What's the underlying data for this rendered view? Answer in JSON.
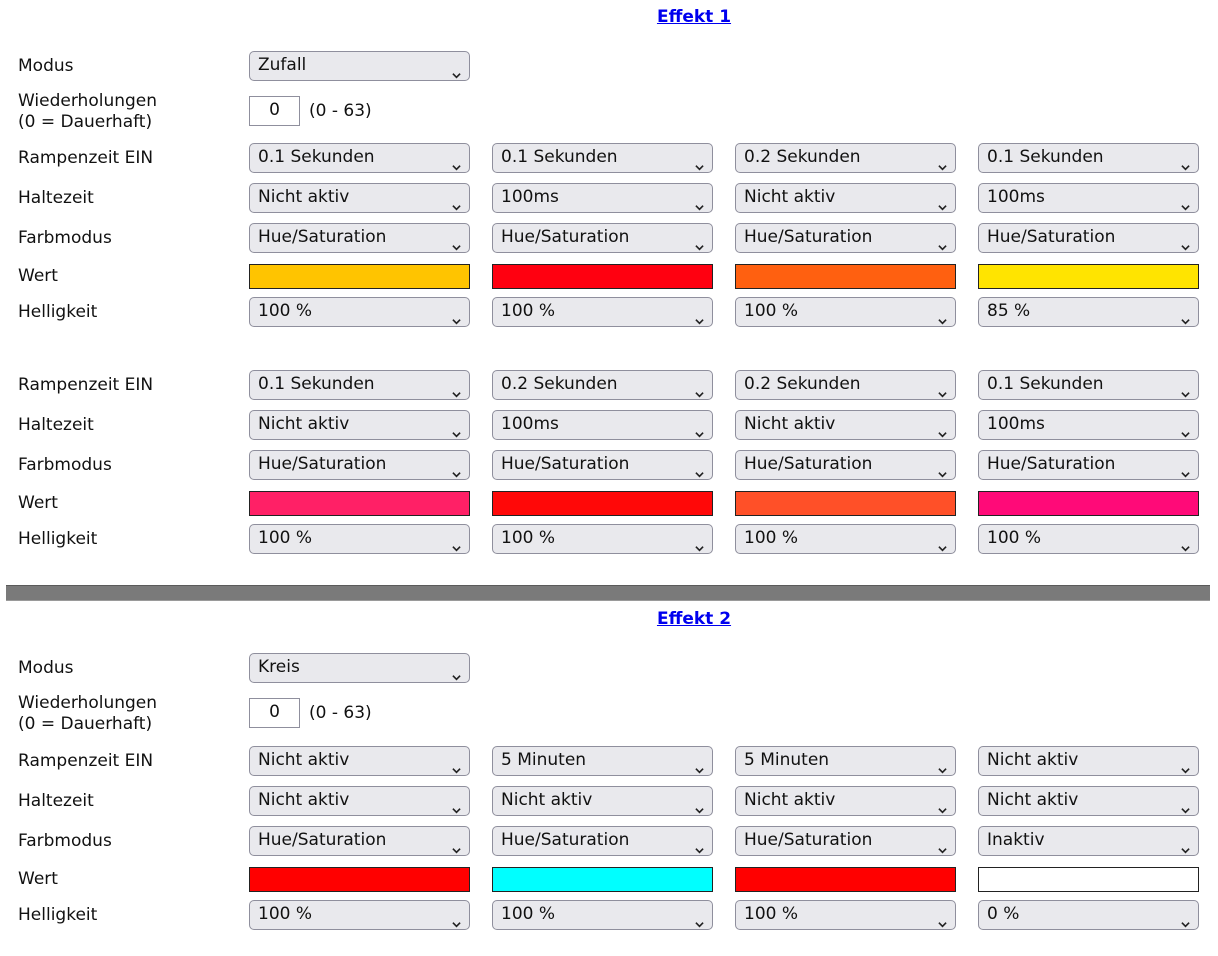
{
  "labels": {
    "modus": "Modus",
    "wiederholungen_1": "Wiederholungen",
    "wiederholungen_2": "(0 = Dauerhaft)",
    "range": "(0 - 63)",
    "rampenzeit": "Rampenzeit EIN",
    "haltezeit": "Haltezeit",
    "farbmodus": "Farbmodus",
    "wert": "Wert",
    "helligkeit": "Helligkeit"
  },
  "effects": [
    {
      "title": "Effekt 1",
      "modus": "Zufall",
      "wiederholungen": "0",
      "groups": [
        {
          "rampenzeit": [
            "0.1 Sekunden",
            "0.1 Sekunden",
            "0.2 Sekunden",
            "0.1 Sekunden"
          ],
          "haltezeit": [
            "Nicht aktiv",
            "100ms",
            "Nicht aktiv",
            "100ms"
          ],
          "farbmodus": [
            "Hue/Saturation",
            "Hue/Saturation",
            "Hue/Saturation",
            "Hue/Saturation"
          ],
          "wert": [
            "#ffc400",
            "#ff0010",
            "#ff6010",
            "#ffe400"
          ],
          "helligkeit": [
            "100 %",
            "100 %",
            "100 %",
            "85 %"
          ]
        },
        {
          "rampenzeit": [
            "0.1 Sekunden",
            "0.2 Sekunden",
            "0.2 Sekunden",
            "0.1 Sekunden"
          ],
          "haltezeit": [
            "Nicht aktiv",
            "100ms",
            "Nicht aktiv",
            "100ms"
          ],
          "farbmodus": [
            "Hue/Saturation",
            "Hue/Saturation",
            "Hue/Saturation",
            "Hue/Saturation"
          ],
          "wert": [
            "#ff2066",
            "#ff0808",
            "#ff5028",
            "#ff0a78"
          ],
          "helligkeit": [
            "100 %",
            "100 %",
            "100 %",
            "100 %"
          ]
        }
      ]
    },
    {
      "title": "Effekt 2",
      "modus": "Kreis",
      "wiederholungen": "0",
      "groups": [
        {
          "rampenzeit": [
            "Nicht aktiv",
            "5 Minuten",
            "5 Minuten",
            "Nicht aktiv"
          ],
          "haltezeit": [
            "Nicht aktiv",
            "Nicht aktiv",
            "Nicht aktiv",
            "Nicht aktiv"
          ],
          "farbmodus": [
            "Hue/Saturation",
            "Hue/Saturation",
            "Hue/Saturation",
            "Inaktiv"
          ],
          "wert": [
            "#ff0000",
            "#00ffff",
            "#ff0000",
            "#ffffff"
          ],
          "helligkeit": [
            "100 %",
            "100 %",
            "100 %",
            "0 %"
          ]
        }
      ]
    }
  ]
}
